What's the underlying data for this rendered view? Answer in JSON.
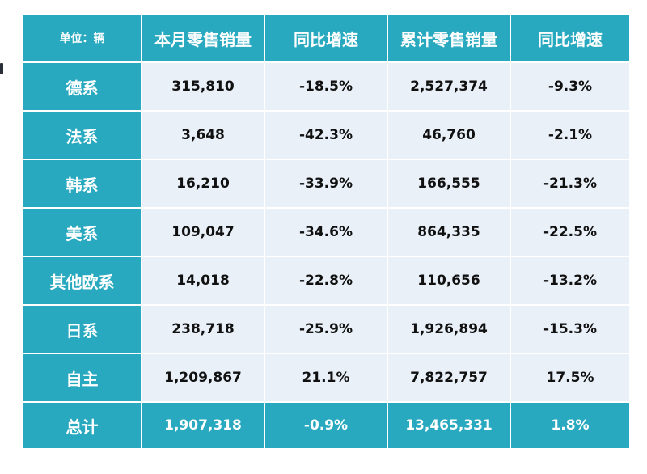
{
  "table": {
    "unit_label": "单位：辆",
    "headers": [
      "本月零售销量",
      "同比增速",
      "累计零售销量",
      "同比增速"
    ],
    "rows": [
      {
        "label": "德系",
        "cells": [
          "315,810",
          "-18.5%",
          "2,527,374",
          "-9.3%"
        ]
      },
      {
        "label": "法系",
        "cells": [
          "3,648",
          "-42.3%",
          "46,760",
          "-2.1%"
        ]
      },
      {
        "label": "韩系",
        "cells": [
          "16,210",
          "-33.9%",
          "166,555",
          "-21.3%"
        ]
      },
      {
        "label": "美系",
        "cells": [
          "109,047",
          "-34.6%",
          "864,335",
          "-22.5%"
        ]
      },
      {
        "label": "其他欧系",
        "cells": [
          "14,018",
          "-22.8%",
          "110,656",
          "-13.2%"
        ]
      },
      {
        "label": "日系",
        "cells": [
          "238,718",
          "-25.9%",
          "1,926,894",
          "-15.3%"
        ]
      },
      {
        "label": "自主",
        "cells": [
          "1,209,867",
          "21.1%",
          "7,822,757",
          "17.5%"
        ]
      }
    ],
    "total": {
      "label": "总计",
      "cells": [
        "1,907,318",
        "-0.9%",
        "13,465,331",
        "1.8%"
      ]
    }
  },
  "colors": {
    "header_bg": "#29a9bf",
    "body_bg": "#e9f0f8",
    "header_text": "#ffffff"
  }
}
